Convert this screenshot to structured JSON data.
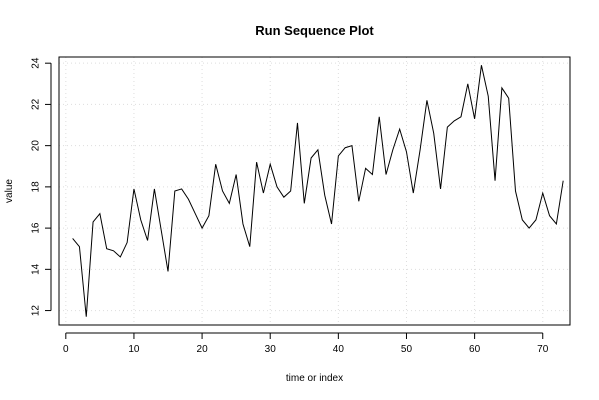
{
  "chart_data": {
    "type": "line",
    "title": "Run Sequence Plot",
    "xlabel": "time or index",
    "ylabel": "value",
    "xlim": [
      -1,
      74
    ],
    "ylim": [
      11.3,
      24.3
    ],
    "x_ticks": [
      0,
      10,
      20,
      30,
      40,
      50,
      60,
      70
    ],
    "y_ticks": [
      12,
      14,
      16,
      18,
      20,
      22,
      24
    ],
    "grid": true,
    "line_color": "#000000",
    "grid_color": "#dddddd",
    "x": [
      1,
      2,
      3,
      4,
      5,
      6,
      7,
      8,
      9,
      10,
      11,
      12,
      13,
      14,
      15,
      16,
      17,
      18,
      19,
      20,
      21,
      22,
      23,
      24,
      25,
      26,
      27,
      28,
      29,
      30,
      31,
      32,
      33,
      34,
      35,
      36,
      37,
      38,
      39,
      40,
      41,
      42,
      43,
      44,
      45,
      46,
      47,
      48,
      49,
      50,
      51,
      52,
      53,
      54,
      55,
      56,
      57,
      58,
      59,
      60,
      61,
      62,
      63,
      64,
      65,
      66,
      67,
      68,
      69,
      70,
      71,
      72,
      73
    ],
    "values": [
      15.5,
      15.1,
      11.7,
      16.3,
      16.7,
      15.0,
      14.9,
      14.6,
      15.3,
      17.9,
      16.4,
      15.4,
      17.9,
      15.9,
      13.9,
      17.8,
      17.9,
      17.4,
      16.7,
      16.0,
      16.6,
      19.1,
      17.8,
      17.2,
      18.6,
      16.2,
      15.1,
      19.2,
      17.7,
      19.1,
      18.0,
      17.5,
      17.8,
      21.1,
      17.2,
      19.4,
      19.8,
      17.6,
      16.2,
      19.5,
      19.9,
      20.0,
      17.3,
      18.9,
      18.6,
      21.4,
      18.6,
      19.8,
      20.8,
      19.7,
      17.7,
      19.8,
      22.2,
      20.6,
      17.9,
      20.9,
      21.2,
      21.4,
      23.0,
      21.3,
      23.9,
      22.4,
      18.3,
      22.8,
      22.3,
      17.8,
      16.4,
      16.0,
      16.4,
      17.7,
      16.6,
      16.2,
      18.3
    ]
  }
}
